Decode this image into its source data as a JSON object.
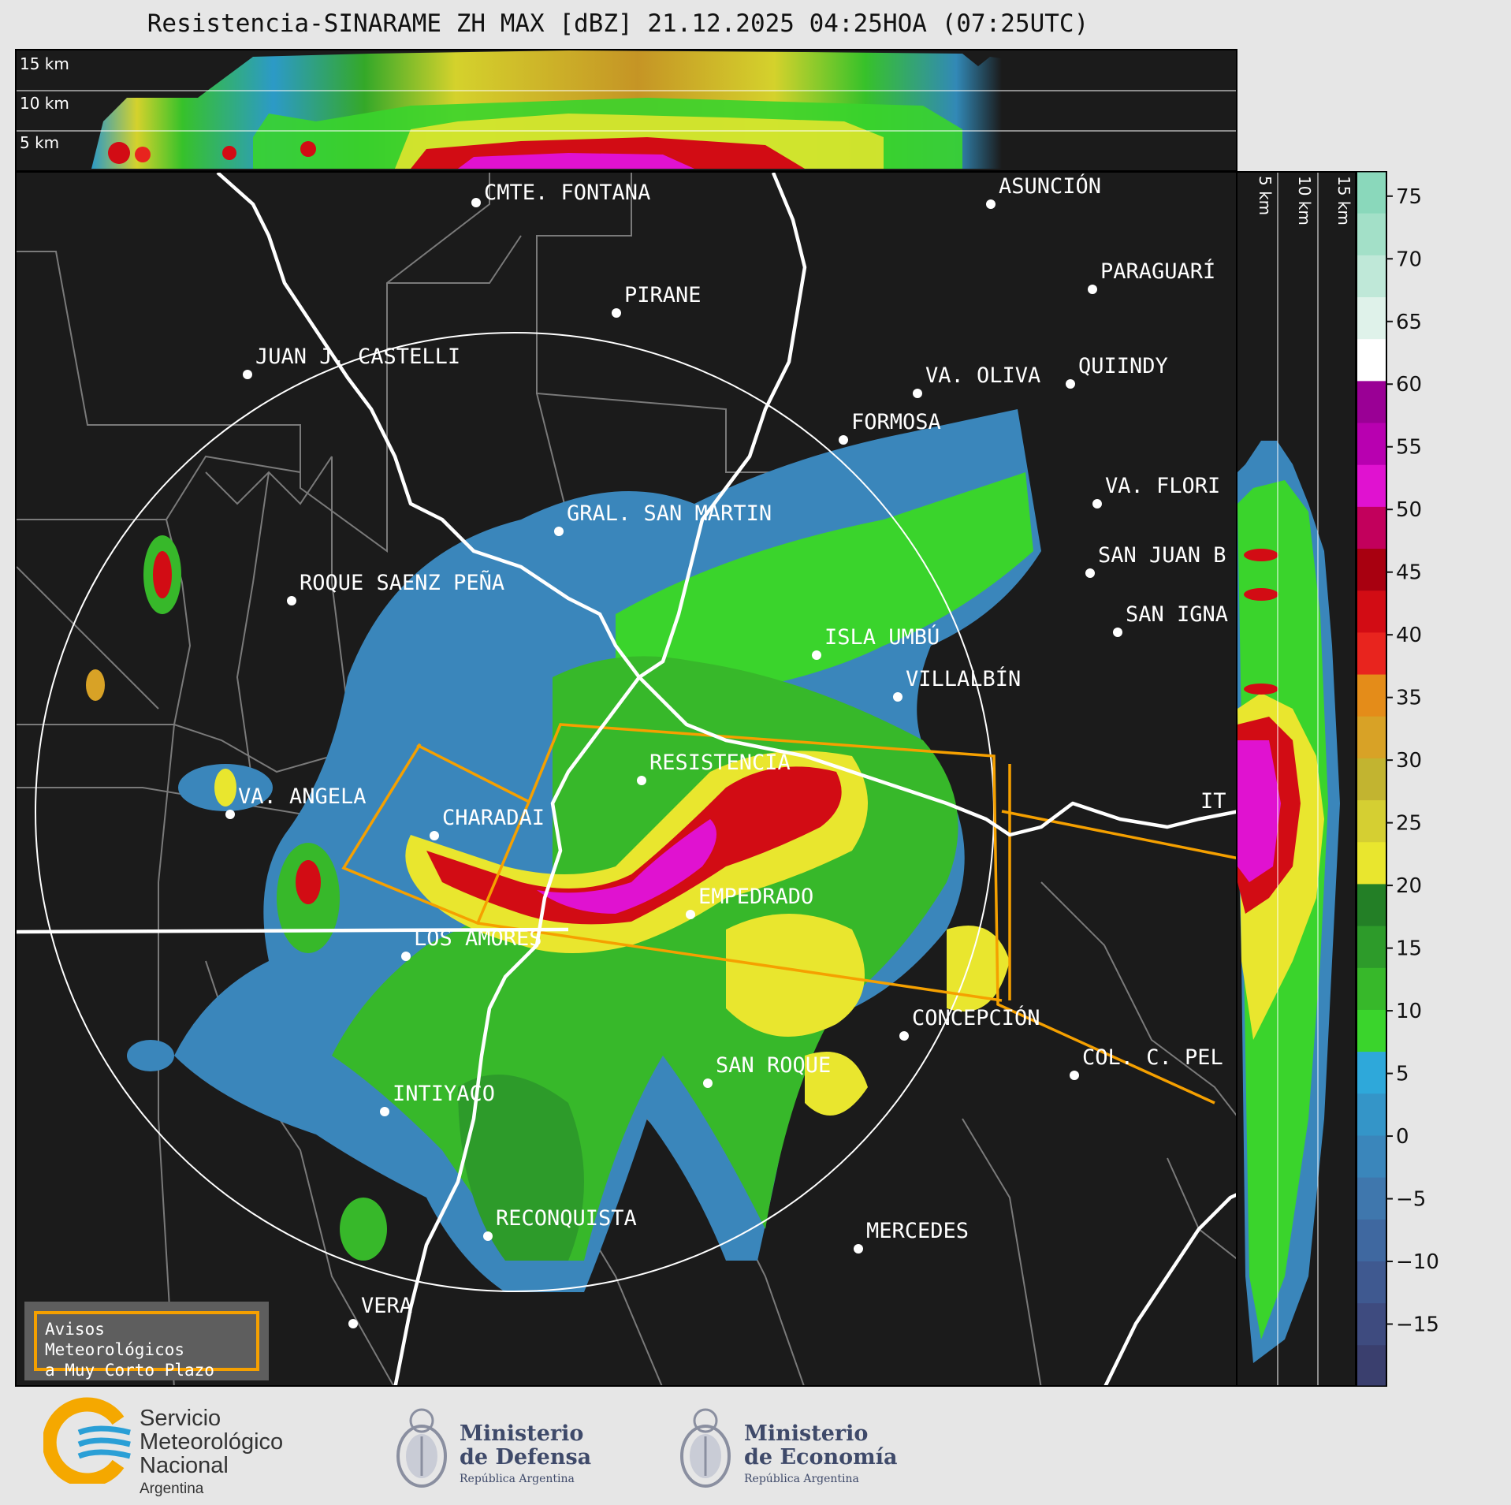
{
  "title": "Resistencia-SINARAME ZH MAX [dBZ] 21.12.2025 04:25HOA (07:25UTC)",
  "top_panel": {
    "height_labels": [
      "15 km",
      "10 km",
      "5 km"
    ]
  },
  "right_panel": {
    "height_labels": [
      "5 km",
      "10 km",
      "15 km"
    ]
  },
  "colorbar": {
    "unit": "dBZ",
    "ticks": [
      "75",
      "70",
      "65",
      "60",
      "55",
      "50",
      "45",
      "40",
      "35",
      "30",
      "25",
      "20",
      "15",
      "10",
      "5",
      "0",
      "−5",
      "−10",
      "−15"
    ],
    "range": [
      -20,
      77
    ],
    "colors": [
      "#3a3f6e",
      "#3e4b7f",
      "#3f5990",
      "#3f68a0",
      "#3f77ad",
      "#3a86bb",
      "#3495c8",
      "#2ea8da",
      "#3ad42c",
      "#37b82a",
      "#2d9b2a",
      "#237f26",
      "#e9e62e",
      "#d5cf32",
      "#c2b430",
      "#d8a226",
      "#e48c19",
      "#e8241e",
      "#d20c14",
      "#a80010",
      "#c2005c",
      "#e012d0",
      "#b800b0",
      "#9a0095",
      "#ffffff",
      "#dff2ea",
      "#bfe8d8",
      "#a3e0c8",
      "#8ad8bb"
    ]
  },
  "cities": [
    {
      "name": "CMTE. FONTANA"
    },
    {
      "name": "ASUNCIÓN"
    },
    {
      "name": "PIRANE"
    },
    {
      "name": "PARAGUARÍ"
    },
    {
      "name": "JUAN J. CASTELLI"
    },
    {
      "name": "VA. OLIVA"
    },
    {
      "name": "QUIINDY"
    },
    {
      "name": "FORMOSA"
    },
    {
      "name": "VA. FLORI"
    },
    {
      "name": "GRAL. SAN MARTIN"
    },
    {
      "name": "SAN JUAN B"
    },
    {
      "name": "ROQUE SAENZ PEÑA"
    },
    {
      "name": "SAN IGNA"
    },
    {
      "name": "ISLA UMBÚ"
    },
    {
      "name": "VILLALBÍN"
    },
    {
      "name": "RESISTENCIA"
    },
    {
      "name": "VA. ANGELA"
    },
    {
      "name": "CHARADAI"
    },
    {
      "name": "IT"
    },
    {
      "name": "EMPEDRADO"
    },
    {
      "name": "LOS AMORES"
    },
    {
      "name": "CONCEPCIÓN"
    },
    {
      "name": "SAN ROQUE"
    },
    {
      "name": "COL. C. PEL"
    },
    {
      "name": "INTIYACO"
    },
    {
      "name": "RECONQUISTA"
    },
    {
      "name": "MERCEDES"
    },
    {
      "name": "VERA"
    }
  ],
  "legend": {
    "line1": "Avisos Meteorológicos",
    "line2": "a Muy Corto Plazo"
  },
  "logos": {
    "smn": {
      "line1": "Servicio",
      "line2": "Meteorológico",
      "line3": "Nacional",
      "line4": "Argentina"
    },
    "defensa": {
      "line1": "Ministerio",
      "line2": "de Defensa",
      "line3": "República Argentina"
    },
    "economia": {
      "line1": "Ministerio",
      "line2": "de Economía",
      "line3": "República Argentina"
    }
  }
}
